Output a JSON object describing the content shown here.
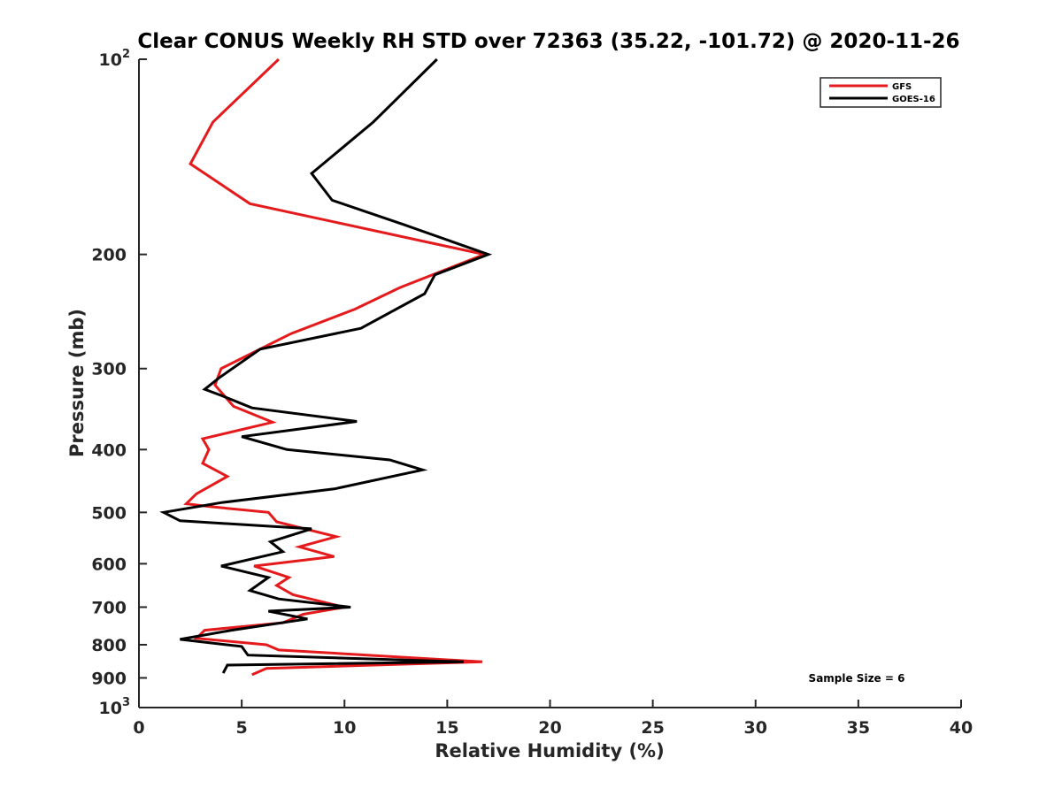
{
  "chart_data": {
    "type": "line",
    "title": "Clear CONUS Weekly RH STD over 72363 (35.22, -101.72) @ 2020-11-26",
    "xlabel": "Relative Humidity (%)",
    "ylabel": "Pressure (mb)",
    "xlim": [
      0,
      40
    ],
    "ylim": [
      1000,
      100
    ],
    "yscale": "log",
    "x_ticks": [
      0,
      5,
      10,
      15,
      20,
      25,
      30,
      35,
      40
    ],
    "y_ticks": [
      {
        "value": 100,
        "label": "10",
        "exp": "2"
      },
      {
        "value": 200,
        "label": "200"
      },
      {
        "value": 300,
        "label": "300"
      },
      {
        "value": 400,
        "label": "400"
      },
      {
        "value": 500,
        "label": "500"
      },
      {
        "value": 600,
        "label": "600"
      },
      {
        "value": 700,
        "label": "700"
      },
      {
        "value": 800,
        "label": "800"
      },
      {
        "value": 900,
        "label": "900"
      },
      {
        "value": 1000,
        "label": "10",
        "exp": "3"
      }
    ],
    "legend_position": "top-right",
    "annotation": "Sample Size = 6",
    "series": [
      {
        "name": "GFS",
        "color": "#e41a1c",
        "points": [
          {
            "p": 100,
            "rh": 6.8
          },
          {
            "p": 125,
            "rh": 3.6
          },
          {
            "p": 145,
            "rh": 2.5
          },
          {
            "p": 167,
            "rh": 5.4
          },
          {
            "p": 200,
            "rh": 16.8
          },
          {
            "p": 225,
            "rh": 12.7
          },
          {
            "p": 243,
            "rh": 10.5
          },
          {
            "p": 265,
            "rh": 7.4
          },
          {
            "p": 300,
            "rh": 4.0
          },
          {
            "p": 318,
            "rh": 3.7
          },
          {
            "p": 343,
            "rh": 4.6
          },
          {
            "p": 363,
            "rh": 6.5
          },
          {
            "p": 385,
            "rh": 3.1
          },
          {
            "p": 400,
            "rh": 3.4
          },
          {
            "p": 420,
            "rh": 3.1
          },
          {
            "p": 440,
            "rh": 4.3
          },
          {
            "p": 468,
            "rh": 2.8
          },
          {
            "p": 485,
            "rh": 2.3
          },
          {
            "p": 490,
            "rh": 3.5
          },
          {
            "p": 500,
            "rh": 6.3
          },
          {
            "p": 517,
            "rh": 6.7
          },
          {
            "p": 545,
            "rh": 9.6
          },
          {
            "p": 565,
            "rh": 7.8
          },
          {
            "p": 585,
            "rh": 9.5
          },
          {
            "p": 605,
            "rh": 5.6
          },
          {
            "p": 618,
            "rh": 6.5
          },
          {
            "p": 630,
            "rh": 7.3
          },
          {
            "p": 648,
            "rh": 6.7
          },
          {
            "p": 670,
            "rh": 7.5
          },
          {
            "p": 700,
            "rh": 10.0
          },
          {
            "p": 718,
            "rh": 8.0
          },
          {
            "p": 740,
            "rh": 7.0
          },
          {
            "p": 760,
            "rh": 3.2
          },
          {
            "p": 782,
            "rh": 2.8
          },
          {
            "p": 800,
            "rh": 6.2
          },
          {
            "p": 815,
            "rh": 6.8
          },
          {
            "p": 850,
            "rh": 16.7
          },
          {
            "p": 870,
            "rh": 6.2
          },
          {
            "p": 890,
            "rh": 5.5
          }
        ]
      },
      {
        "name": "GOES-16",
        "color": "#000000",
        "points": [
          {
            "p": 100,
            "rh": 14.5
          },
          {
            "p": 125,
            "rh": 11.4
          },
          {
            "p": 150,
            "rh": 8.4
          },
          {
            "p": 165,
            "rh": 9.4
          },
          {
            "p": 180,
            "rh": 12.9
          },
          {
            "p": 200,
            "rh": 17.0
          },
          {
            "p": 215,
            "rh": 14.4
          },
          {
            "p": 230,
            "rh": 13.9
          },
          {
            "p": 260,
            "rh": 10.8
          },
          {
            "p": 280,
            "rh": 5.9
          },
          {
            "p": 310,
            "rh": 3.9
          },
          {
            "p": 323,
            "rh": 3.2
          },
          {
            "p": 330,
            "rh": 4.0
          },
          {
            "p": 345,
            "rh": 5.5
          },
          {
            "p": 362,
            "rh": 10.6
          },
          {
            "p": 382,
            "rh": 5.0
          },
          {
            "p": 400,
            "rh": 7.2
          },
          {
            "p": 415,
            "rh": 12.2
          },
          {
            "p": 430,
            "rh": 13.8
          },
          {
            "p": 460,
            "rh": 9.5
          },
          {
            "p": 483,
            "rh": 4.0
          },
          {
            "p": 500,
            "rh": 1.2
          },
          {
            "p": 515,
            "rh": 2.0
          },
          {
            "p": 530,
            "rh": 8.4
          },
          {
            "p": 555,
            "rh": 6.4
          },
          {
            "p": 575,
            "rh": 7.0
          },
          {
            "p": 605,
            "rh": 4.0
          },
          {
            "p": 630,
            "rh": 6.3
          },
          {
            "p": 660,
            "rh": 5.4
          },
          {
            "p": 680,
            "rh": 6.8
          },
          {
            "p": 700,
            "rh": 10.3
          },
          {
            "p": 710,
            "rh": 6.3
          },
          {
            "p": 730,
            "rh": 8.2
          },
          {
            "p": 760,
            "rh": 4.5
          },
          {
            "p": 785,
            "rh": 2.0
          },
          {
            "p": 805,
            "rh": 5.0
          },
          {
            "p": 830,
            "rh": 5.3
          },
          {
            "p": 850,
            "rh": 15.8
          },
          {
            "p": 860,
            "rh": 4.3
          },
          {
            "p": 885,
            "rh": 4.1
          }
        ]
      }
    ]
  }
}
